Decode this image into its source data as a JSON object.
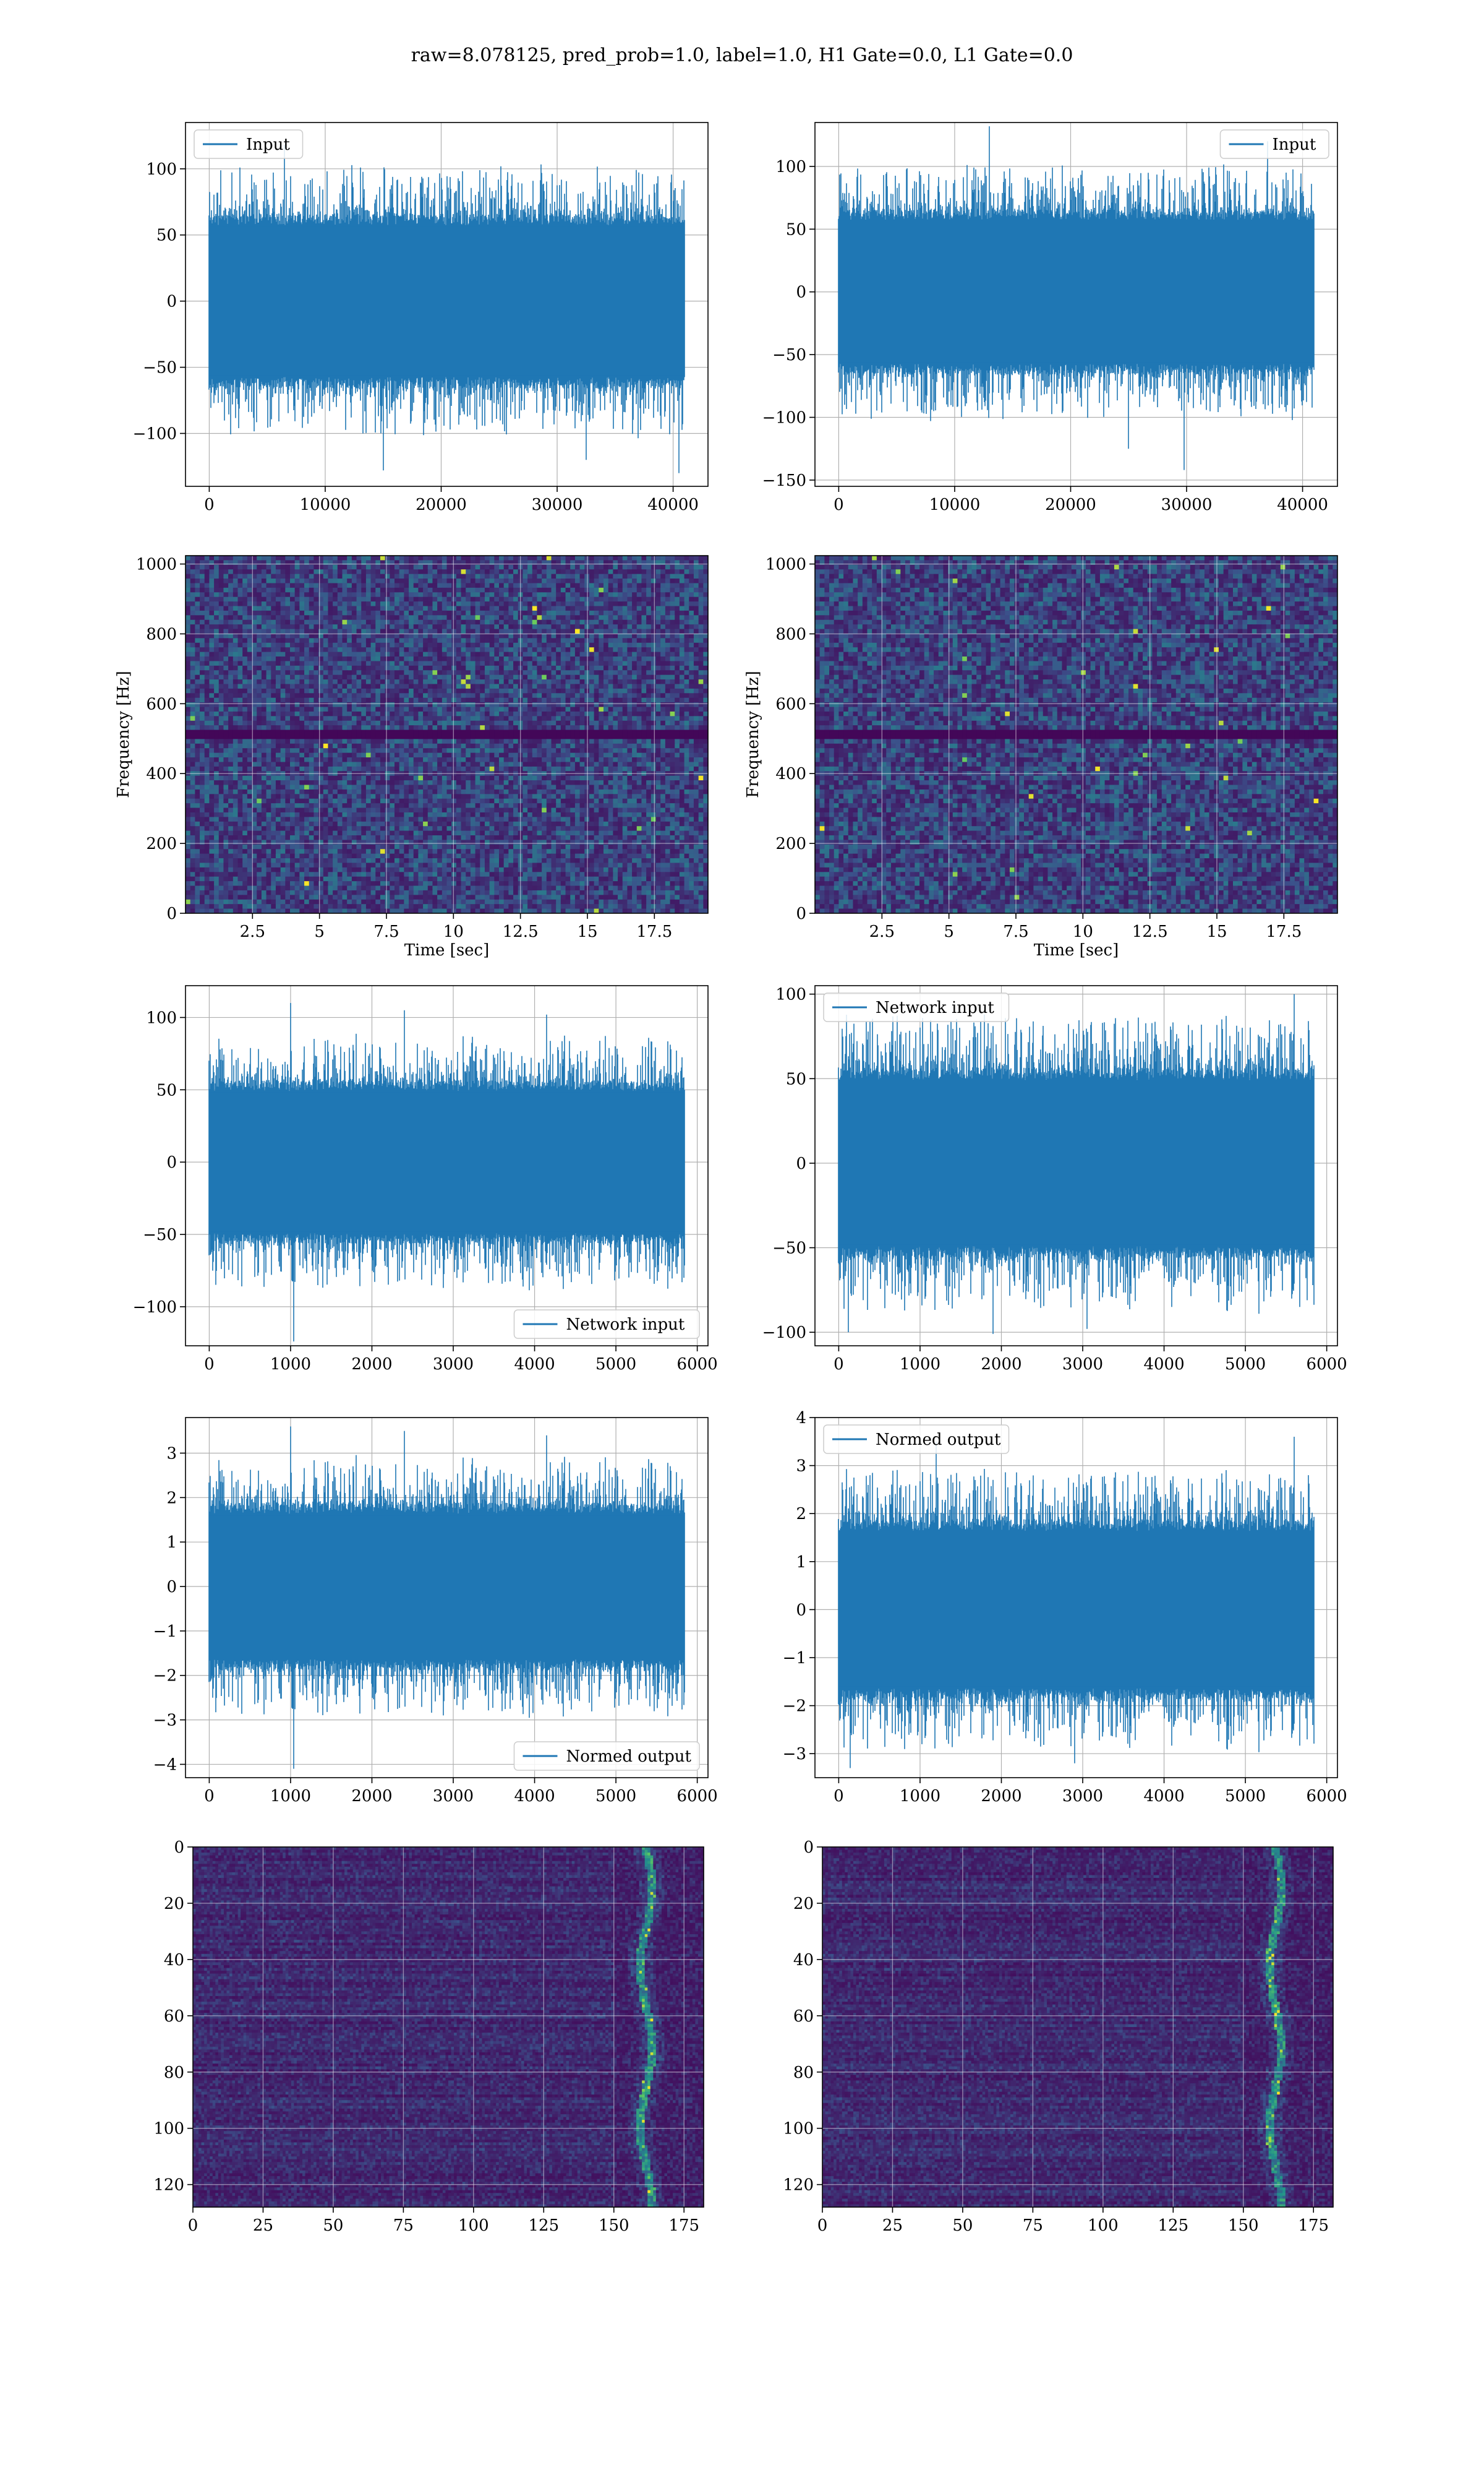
{
  "figure": {
    "suptitle": "raw=8.078125, pred_prob=1.0, label=1.0, H1 Gate=0.0, L1 Gate=0.0",
    "line_color": "#1f77b4",
    "grid_color": "#b0b0b0"
  },
  "chart_data": [
    {
      "id": "ts-input-h1",
      "type": "line",
      "series": [
        {
          "name": "Input",
          "n_points": 40960,
          "amplitude": 70,
          "seed": 11,
          "excursions": [
            [
              6500,
              118
            ],
            [
              15000,
              -128
            ],
            [
              32500,
              -120
            ],
            [
              40500,
              -130
            ]
          ]
        }
      ],
      "xlim": [
        -2048,
        43008
      ],
      "ylim": [
        -140,
        135
      ],
      "xticks": [
        0,
        10000,
        20000,
        30000,
        40000
      ],
      "yticks": [
        -100,
        -50,
        0,
        50,
        100
      ],
      "xlabel": "",
      "ylabel": "",
      "legend": "upper left",
      "grid": true
    },
    {
      "id": "ts-input-l1",
      "type": "line",
      "series": [
        {
          "name": "Input",
          "n_points": 40960,
          "amplitude": 70,
          "seed": 23,
          "excursions": [
            [
              13000,
              132
            ],
            [
              29800,
              -142
            ],
            [
              25000,
              -125
            ],
            [
              37000,
              120
            ]
          ]
        }
      ],
      "xlim": [
        -2048,
        43008
      ],
      "ylim": [
        -155,
        135
      ],
      "xticks": [
        0,
        10000,
        20000,
        30000,
        40000
      ],
      "yticks": [
        -150,
        -100,
        -50,
        0,
        50,
        100
      ],
      "xlabel": "",
      "ylabel": "",
      "legend": "upper right",
      "grid": true
    },
    {
      "id": "spec-h1",
      "type": "heatmap",
      "seed": 5,
      "xlim": [
        0,
        19.5
      ],
      "ylim": [
        0,
        1024
      ],
      "xticks": [
        2.5,
        5.0,
        7.5,
        10.0,
        12.5,
        15.0,
        17.5
      ],
      "yticks": [
        0,
        200,
        400,
        600,
        800,
        1000
      ],
      "xlabel": "Time [sec]",
      "ylabel": "Frequency [Hz]",
      "dark_band_hz": [
        500,
        520
      ],
      "grid": true
    },
    {
      "id": "spec-l1",
      "type": "heatmap",
      "seed": 9,
      "xlim": [
        0,
        19.5
      ],
      "ylim": [
        0,
        1024
      ],
      "xticks": [
        2.5,
        5.0,
        7.5,
        10.0,
        12.5,
        15.0,
        17.5
      ],
      "yticks": [
        0,
        200,
        400,
        600,
        800,
        1000
      ],
      "xlabel": "Time [sec]",
      "ylabel": "Frequency [Hz]",
      "dark_band_hz": [
        500,
        520
      ],
      "grid": true
    },
    {
      "id": "net-input-h1",
      "type": "line",
      "series": [
        {
          "name": "Network input",
          "n_points": 5840,
          "amplitude": 60,
          "seed": 31,
          "excursions": [
            [
              1040,
              -124
            ],
            [
              1000,
              110
            ],
            [
              2400,
              105
            ],
            [
              4150,
              102
            ]
          ]
        }
      ],
      "xlim": [
        -292,
        6132
      ],
      "ylim": [
        -127,
        122
      ],
      "xticks": [
        0,
        1000,
        2000,
        3000,
        4000,
        5000,
        6000
      ],
      "yticks": [
        -100,
        -50,
        0,
        50,
        100
      ],
      "xlabel": "",
      "ylabel": "",
      "legend": "lower right",
      "grid": true
    },
    {
      "id": "net-input-l1",
      "type": "line",
      "series": [
        {
          "name": "Network input",
          "n_points": 5840,
          "amplitude": 60,
          "seed": 43,
          "excursions": [
            [
              5600,
              100
            ],
            [
              1900,
              -101
            ],
            [
              3050,
              -98
            ],
            [
              120,
              -100
            ]
          ]
        }
      ],
      "xlim": [
        -292,
        6132
      ],
      "ylim": [
        -108,
        105
      ],
      "xticks": [
        0,
        1000,
        2000,
        3000,
        4000,
        5000,
        6000
      ],
      "yticks": [
        -100,
        -50,
        0,
        50,
        100
      ],
      "xlabel": "",
      "ylabel": "",
      "legend": "upper left",
      "grid": true
    },
    {
      "id": "normed-h1",
      "type": "line",
      "series": [
        {
          "name": "Normed output",
          "n_points": 5840,
          "amplitude": 2.0,
          "seed": 31,
          "excursions": [
            [
              1040,
              -4.1
            ],
            [
              1000,
              3.6
            ],
            [
              2400,
              3.5
            ],
            [
              4150,
              3.4
            ]
          ]
        }
      ],
      "xlim": [
        -292,
        6132
      ],
      "ylim": [
        -4.3,
        3.8
      ],
      "xticks": [
        0,
        1000,
        2000,
        3000,
        4000,
        5000,
        6000
      ],
      "yticks": [
        -4,
        -3,
        -2,
        -1,
        0,
        1,
        2,
        3
      ],
      "xlabel": "",
      "ylabel": "",
      "legend": "lower right",
      "grid": true
    },
    {
      "id": "normed-l1",
      "type": "line",
      "series": [
        {
          "name": "Normed output",
          "n_points": 5840,
          "amplitude": 2.0,
          "seed": 43,
          "excursions": [
            [
              5600,
              3.6
            ],
            [
              2900,
              -3.2
            ],
            [
              140,
              -3.3
            ],
            [
              1200,
              3.5
            ]
          ]
        }
      ],
      "xlim": [
        -292,
        6132
      ],
      "ylim": [
        -3.5,
        4.0
      ],
      "xticks": [
        0,
        1000,
        2000,
        3000,
        4000,
        5000,
        6000
      ],
      "yticks": [
        -3,
        -2,
        -1,
        0,
        1,
        2,
        3,
        4
      ],
      "xlabel": "",
      "ylabel": "",
      "legend": "upper left",
      "grid": true
    },
    {
      "id": "feat-h1",
      "type": "heatmap",
      "seed": 17,
      "xlim": [
        0,
        182
      ],
      "ylim": [
        0,
        128
      ],
      "y_inverted": true,
      "xticks": [
        0,
        25,
        50,
        75,
        100,
        125,
        150,
        175
      ],
      "yticks": [
        0,
        20,
        40,
        60,
        80,
        100,
        120
      ],
      "xlabel": "",
      "ylabel": "",
      "bright_column": 161,
      "grid": true
    },
    {
      "id": "feat-l1",
      "type": "heatmap",
      "seed": 29,
      "xlim": [
        0,
        182
      ],
      "ylim": [
        0,
        128
      ],
      "y_inverted": true,
      "xticks": [
        0,
        25,
        50,
        75,
        100,
        125,
        150,
        175
      ],
      "yticks": [
        0,
        20,
        40,
        60,
        80,
        100,
        120
      ],
      "xlabel": "",
      "ylabel": "",
      "bright_column": 161,
      "grid": true
    }
  ]
}
